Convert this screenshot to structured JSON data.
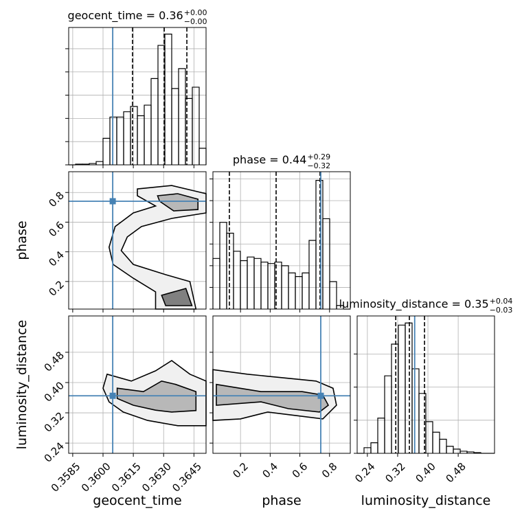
{
  "chart_data": {
    "type": "corner",
    "truth_color": "#4682b4",
    "hist_color": "#000000",
    "grid": true,
    "parameters": [
      {
        "label": "geocent_time",
        "lim": [
          0.3583,
          0.3651
        ],
        "ticks": [
          0.3585,
          {
            "value": 0.36,
            "label": "0.3600"
          },
          0.3615,
          {
            "value": 0.363,
            "label": "0.3630"
          },
          0.3645
        ],
        "truth": 0.36048,
        "quantiles": [
          0.36146,
          0.36303,
          0.36415
        ],
        "title": {
          "text": "geocent_time = 0.36",
          "upper": "+0.00",
          "lower": "−0.00"
        },
        "hist": {
          "bins": [
            0.3583,
            0.35864,
            0.35898,
            0.35932,
            0.35966,
            0.36,
            0.36034,
            0.36068,
            0.36102,
            0.36136,
            0.3617,
            0.36204,
            0.36238,
            0.36272,
            0.36306,
            0.3634,
            0.36374,
            0.36408,
            0.36442,
            0.36476,
            0.3651
          ],
          "counts": [
            0,
            1,
            1,
            2,
            5,
            40,
            72,
            72,
            80,
            88,
            74,
            90,
            130,
            180,
            197,
            115,
            145,
            100,
            117,
            25
          ],
          "ylim": [
            0,
            207
          ],
          "yticks": [
            0,
            35,
            70,
            105,
            140,
            175
          ]
        }
      },
      {
        "label": "phase",
        "lim": [
          0.014,
          0.94
        ],
        "ticks": [
          0.2,
          0.4,
          0.6,
          0.8
        ],
        "truth": 0.741,
        "quantiles": [
          0.125,
          0.44,
          0.736
        ],
        "title": {
          "text": "phase = 0.44",
          "upper": "+0.29",
          "lower": "−0.32"
        },
        "hist": {
          "bins": [
            0.014,
            0.0603,
            0.1066,
            0.1529,
            0.1992,
            0.2455,
            0.2918,
            0.3381,
            0.3844,
            0.4307,
            0.477,
            0.5233,
            0.5696,
            0.6159,
            0.6622,
            0.7085,
            0.7548,
            0.8011,
            0.8474,
            0.8937,
            0.94
          ],
          "counts": [
            70,
            120,
            105,
            80,
            67,
            72,
            70,
            65,
            63,
            65,
            60,
            50,
            45,
            50,
            95,
            178,
            125,
            38,
            5,
            0
          ],
          "ylim": [
            0,
            190
          ],
          "yticks": [
            0,
            30,
            60,
            90,
            120,
            150,
            180
          ]
        }
      },
      {
        "label": "luminosity_distance",
        "lim": [
          0.213,
          0.576
        ],
        "ticks": [
          0.24,
          0.32,
          {
            "value": 0.4,
            "label": "0.40"
          },
          0.48
        ],
        "truth": 0.365,
        "quantiles": [
          0.315,
          0.351,
          0.391
        ],
        "title": {
          "text": "luminosity_distance = 0.35",
          "upper": "+0.04",
          "lower": "−0.03"
        },
        "hist": {
          "bins": [
            0.213,
            0.23115,
            0.2493,
            0.26745,
            0.2856,
            0.30375,
            0.3219,
            0.34005,
            0.3582,
            0.37635,
            0.3945,
            0.41265,
            0.4308,
            0.44895,
            0.4671,
            0.48525,
            0.5034,
            0.52155,
            0.5397,
            0.55785,
            0.576
          ],
          "counts": [
            0,
            8,
            15,
            50,
            110,
            155,
            182,
            185,
            120,
            85,
            45,
            30,
            20,
            10,
            6,
            3,
            2,
            1,
            0,
            0
          ],
          "ylim": [
            0,
            195
          ],
          "yticks": [
            0,
            47,
            94,
            141
          ]
        }
      }
    ],
    "contours": [
      {
        "x": 0,
        "y": 1,
        "levels": [
          {
            "x": [
              0.3617,
              0.3634,
              0.3651,
              0.3651,
              0.3634,
              0.3619,
              0.3612,
              0.3609,
              0.3615,
              0.3631,
              0.3643,
              0.3646,
              0.3626,
              0.3626,
              0.3615,
              0.3605,
              0.3603,
              0.3606,
              0.3615,
              0.3626,
              0.3617
            ],
            "y": [
              0.824,
              0.847,
              0.792,
              0.662,
              0.625,
              0.57,
              0.5,
              0.408,
              0.315,
              0.246,
              0.199,
              0.014,
              0.014,
              0.13,
              0.222,
              0.315,
              0.431,
              0.57,
              0.662,
              0.709,
              0.778
            ]
          },
          {
            "x": [
              0.3627,
              0.3637,
              0.3647,
              0.3647,
              0.3635,
              0.3628
            ],
            "y": [
              0.778,
              0.792,
              0.755,
              0.685,
              0.676,
              0.741
            ]
          },
          {
            "x": [
              0.3629,
              0.3641,
              0.3644,
              0.3631
            ],
            "y": [
              0.107,
              0.153,
              0.037,
              0.037
            ]
          }
        ]
      },
      {
        "x": 0,
        "y": 2,
        "levels": [
          {
            "x": [
              0.3602,
              0.3614,
              0.3626,
              0.3634,
              0.3643,
              0.3651,
              0.3651,
              0.3637,
              0.3622,
              0.361,
              0.3603,
              0.36
            ],
            "y": [
              0.422,
              0.404,
              0.431,
              0.458,
              0.422,
              0.404,
              0.286,
              0.286,
              0.3,
              0.322,
              0.349,
              0.385
            ]
          },
          {
            "x": [
              0.3607,
              0.362,
              0.3629,
              0.3636,
              0.3646,
              0.3646,
              0.3634,
              0.3626,
              0.3615,
              0.3607
            ],
            "y": [
              0.385,
              0.376,
              0.404,
              0.395,
              0.376,
              0.326,
              0.322,
              0.327,
              0.34,
              0.358
            ]
          }
        ]
      },
      {
        "x": 1,
        "y": 2,
        "levels": [
          {
            "x": [
              0.014,
              0.246,
              0.477,
              0.709,
              0.824,
              0.847,
              0.755,
              0.57,
              0.384,
              0.199,
              0.014
            ],
            "y": [
              0.434,
              0.422,
              0.413,
              0.404,
              0.385,
              0.34,
              0.304,
              0.313,
              0.322,
              0.304,
              0.3
            ]
          },
          {
            "x": [
              0.037,
              0.338,
              0.616,
              0.755,
              0.792,
              0.732,
              0.523,
              0.338,
              0.037
            ],
            "y": [
              0.395,
              0.376,
              0.376,
              0.367,
              0.34,
              0.322,
              0.331,
              0.349,
              0.34
            ]
          }
        ]
      }
    ]
  }
}
